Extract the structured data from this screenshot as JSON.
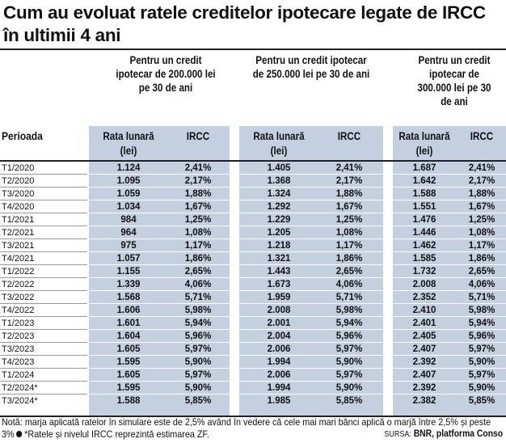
{
  "title": "Cum au evoluat ratele creditelor ipotecare legate de IRCC în ultimii 4 ani",
  "groups": [
    {
      "label": "Pentru un credit ipotecar de 200.000 lei pe 30 de ani"
    },
    {
      "label": "Pentru un credit ipotecar de 250.000 lei pe 30 de ani"
    },
    {
      "label": "Pentru un credit ipotecar de 300.000 lei pe 30 de ani"
    }
  ],
  "headers": {
    "period": "Perioada",
    "rate": "Rata lunară (lei)",
    "ircc": "IRCC"
  },
  "rows": [
    {
      "p": "T1/2020",
      "r1": "1.124",
      "i1": "2,41%",
      "r2": "1.405",
      "i2": "2,41%",
      "r3": "1.687",
      "i3": "2,41%"
    },
    {
      "p": "T2/2020",
      "r1": "1.095",
      "i1": "2,17%",
      "r2": "1.368",
      "i2": "2,17%",
      "r3": "1.642",
      "i3": "2,17%"
    },
    {
      "p": "T3/2020",
      "r1": "1.059",
      "i1": "1,88%",
      "r2": "1.324",
      "i2": "1,88%",
      "r3": "1.588",
      "i3": "1,88%"
    },
    {
      "p": "T4/2020",
      "r1": "1.034",
      "i1": "1,67%",
      "r2": "1.292",
      "i2": "1,67%",
      "r3": "1.551",
      "i3": "1,67%"
    },
    {
      "p": "T1/2021",
      "r1": "984",
      "i1": "1,25%",
      "r2": "1.229",
      "i2": "1,25%",
      "r3": "1.476",
      "i3": "1,25%"
    },
    {
      "p": "T2/2021",
      "r1": "964",
      "i1": "1,08%",
      "r2": "1.205",
      "i2": "1,08%",
      "r3": "1.446",
      "i3": "1,08%"
    },
    {
      "p": "T3/2021",
      "r1": "975",
      "i1": "1,17%",
      "r2": "1.218",
      "i2": "1,17%",
      "r3": "1.462",
      "i3": "1,17%"
    },
    {
      "p": "T4/2021",
      "r1": "1.057",
      "i1": "1,86%",
      "r2": "1.321",
      "i2": "1,86%",
      "r3": "1.585",
      "i3": "1,86%"
    },
    {
      "p": "T1/2022",
      "r1": "1.155",
      "i1": "2,65%",
      "r2": "1.443",
      "i2": "2,65%",
      "r3": "1.732",
      "i3": "2,65%"
    },
    {
      "p": "T2/2022",
      "r1": "1.339",
      "i1": "4,06%",
      "r2": "1.673",
      "i2": "4,06%",
      "r3": "2.008",
      "i3": "4,06%"
    },
    {
      "p": "T3/2022",
      "r1": "1.568",
      "i1": "5,71%",
      "r2": "1.959",
      "i2": "5,71%",
      "r3": "2.352",
      "i3": "5,71%"
    },
    {
      "p": "T4/2022",
      "r1": "1.606",
      "i1": "5,98%",
      "r2": "2.008",
      "i2": "5,98%",
      "r3": "2.410",
      "i3": "5,98%"
    },
    {
      "p": "T1/2023",
      "r1": "1.601",
      "i1": "5,94%",
      "r2": "2.001",
      "i2": "5,94%",
      "r3": "2.401",
      "i3": "5,94%"
    },
    {
      "p": "T2/2023",
      "r1": "1.604",
      "i1": "5,96%",
      "r2": "2.004",
      "i2": "5,96%",
      "r3": "2.405",
      "i3": "5,96%"
    },
    {
      "p": "T3/2023",
      "r1": "1.605",
      "i1": "5,97%",
      "r2": "2.006",
      "i2": "5,97%",
      "r3": "2.407",
      "i3": "5,97%"
    },
    {
      "p": "T4/2023",
      "r1": "1.595",
      "i1": "5,90%",
      "r2": "1.994",
      "i2": "5,90%",
      "r3": "2.392",
      "i3": "5,90%"
    },
    {
      "p": "T1/2024",
      "r1": "1.605",
      "i1": "5,97%",
      "r2": "2.006",
      "i2": "5,97%",
      "r3": "2.407",
      "i3": "5,97%"
    },
    {
      "p": "T2/2024*",
      "r1": "1.595",
      "i1": "5,90%",
      "r2": "1.994",
      "i2": "5,90%",
      "r3": "2.392",
      "i3": "5,90%"
    },
    {
      "p": "T3/2024*",
      "r1": "1.588",
      "i1": "5,85%",
      "r2": "1.985",
      "i2": "5,85%",
      "r3": "2.382",
      "i3": "5,85%"
    }
  ],
  "note": {
    "part1": "Notă: marja aplicată ratelor în simulare este de 2,5% având în vedere că cele mai mari bănci aplică o marjă între 2,5% și peste 3%",
    "part2": "*Ratele și nivelul IRCC reprezintă estimarea ZF."
  },
  "source": {
    "label": "SURSA:",
    "value": "BNR, platforma Conso"
  }
}
